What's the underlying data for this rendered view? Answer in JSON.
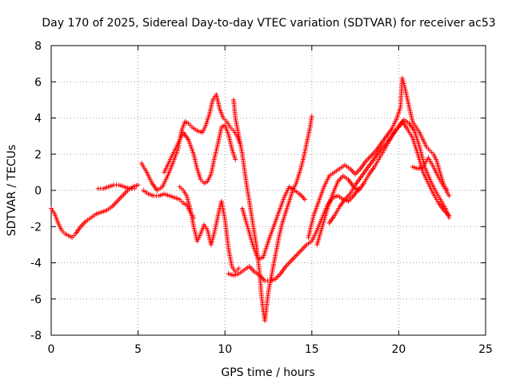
{
  "chart_data": {
    "type": "scatter",
    "title": "Day 170 of 2025, Sidereal Day-to-day VTEC variation (SDTVAR) for receiver ac53",
    "xlabel": "GPS time / hours",
    "ylabel": "SDTVAR / TECUs",
    "xlim": [
      0,
      25
    ],
    "ylim": [
      -8,
      8
    ],
    "x_ticks": [
      0,
      5,
      10,
      15,
      20,
      25
    ],
    "y_ticks": [
      -8,
      -6,
      -4,
      -2,
      0,
      2,
      4,
      6,
      8
    ],
    "grid": true,
    "grid_style": "dotted",
    "marker": "+",
    "legend": "none",
    "colors": {
      "series": "#ff0000",
      "axes": "#000000",
      "grid": "#a0a0a0"
    },
    "series": [
      {
        "points": [
          [
            0.0,
            -1.0
          ],
          [
            0.2,
            -1.3
          ],
          [
            0.4,
            -1.8
          ],
          [
            0.6,
            -2.2
          ],
          [
            0.8,
            -2.4
          ],
          [
            1.0,
            -2.5
          ],
          [
            1.2,
            -2.6
          ],
          [
            1.4,
            -2.4
          ],
          [
            1.7,
            -2.0
          ],
          [
            2.0,
            -1.7
          ],
          [
            2.3,
            -1.5
          ],
          [
            2.6,
            -1.3
          ],
          [
            2.9,
            -1.2
          ],
          [
            3.2,
            -1.1
          ],
          [
            3.5,
            -0.9
          ],
          [
            3.8,
            -0.6
          ],
          [
            4.1,
            -0.3
          ],
          [
            4.4,
            0.0
          ],
          [
            4.7,
            0.2
          ],
          [
            5.0,
            0.3
          ]
        ]
      },
      {
        "points": [
          [
            2.7,
            0.1
          ],
          [
            3.0,
            0.1
          ],
          [
            3.3,
            0.2
          ],
          [
            3.6,
            0.3
          ],
          [
            3.9,
            0.3
          ],
          [
            4.2,
            0.2
          ],
          [
            4.5,
            0.1
          ],
          [
            4.8,
            0.1
          ]
        ]
      },
      {
        "points": [
          [
            5.2,
            1.5
          ],
          [
            5.5,
            1.0
          ],
          [
            5.8,
            0.4
          ],
          [
            6.1,
            0.0
          ],
          [
            6.4,
            0.2
          ],
          [
            6.7,
            0.8
          ],
          [
            7.0,
            1.5
          ],
          [
            7.3,
            2.3
          ],
          [
            7.5,
            3.3
          ],
          [
            7.7,
            3.8
          ],
          [
            7.9,
            3.7
          ],
          [
            8.1,
            3.5
          ],
          [
            8.4,
            3.3
          ],
          [
            8.7,
            3.2
          ],
          [
            8.9,
            3.6
          ],
          [
            9.1,
            4.2
          ],
          [
            9.3,
            5.0
          ],
          [
            9.5,
            5.3
          ],
          [
            9.7,
            4.5
          ],
          [
            9.9,
            4.0
          ],
          [
            10.1,
            3.8
          ],
          [
            10.3,
            3.5
          ],
          [
            10.5,
            3.3
          ],
          [
            10.7,
            3.0
          ],
          [
            10.9,
            2.5
          ]
        ]
      },
      {
        "points": [
          [
            5.3,
            0.0
          ],
          [
            5.6,
            -0.2
          ],
          [
            5.9,
            -0.3
          ],
          [
            6.2,
            -0.3
          ],
          [
            6.5,
            -0.2
          ],
          [
            6.8,
            -0.3
          ],
          [
            7.1,
            -0.4
          ],
          [
            7.4,
            -0.5
          ],
          [
            7.6,
            -0.7
          ],
          [
            7.8,
            -0.8
          ],
          [
            8.0,
            -1.2
          ],
          [
            8.2,
            -1.5
          ]
        ]
      },
      {
        "points": [
          [
            6.5,
            1.0
          ],
          [
            6.8,
            1.6
          ],
          [
            7.1,
            2.2
          ],
          [
            7.3,
            2.6
          ],
          [
            7.6,
            3.2
          ],
          [
            7.9,
            2.8
          ],
          [
            8.2,
            2.0
          ],
          [
            8.4,
            1.2
          ],
          [
            8.6,
            0.6
          ],
          [
            8.8,
            0.4
          ],
          [
            9.0,
            0.5
          ],
          [
            9.2,
            0.9
          ],
          [
            9.4,
            1.8
          ],
          [
            9.6,
            2.6
          ],
          [
            9.8,
            3.5
          ],
          [
            10.0,
            3.6
          ],
          [
            10.2,
            3.1
          ],
          [
            10.4,
            2.3
          ],
          [
            10.6,
            1.7
          ]
        ]
      },
      {
        "points": [
          [
            7.4,
            0.2
          ],
          [
            7.6,
            0.0
          ],
          [
            7.8,
            -0.3
          ],
          [
            8.0,
            -1.0
          ],
          [
            8.2,
            -2.0
          ],
          [
            8.4,
            -2.8
          ],
          [
            8.6,
            -2.4
          ],
          [
            8.8,
            -1.9
          ],
          [
            9.0,
            -2.2
          ],
          [
            9.2,
            -3.0
          ],
          [
            9.4,
            -2.3
          ],
          [
            9.6,
            -1.4
          ],
          [
            9.8,
            -0.6
          ],
          [
            10.0,
            -1.6
          ],
          [
            10.2,
            -3.2
          ],
          [
            10.4,
            -4.2
          ],
          [
            10.6,
            -4.5
          ],
          [
            10.8,
            -4.3
          ]
        ]
      },
      {
        "points": [
          [
            10.5,
            5.0
          ],
          [
            10.6,
            4.0
          ],
          [
            10.8,
            3.0
          ],
          [
            11.0,
            2.0
          ],
          [
            11.2,
            0.6
          ],
          [
            11.4,
            -0.6
          ],
          [
            11.6,
            -1.8
          ],
          [
            11.8,
            -3.0
          ],
          [
            12.0,
            -4.6
          ],
          [
            12.1,
            -5.8
          ],
          [
            12.2,
            -6.6
          ],
          [
            12.3,
            -7.2
          ],
          [
            12.5,
            -5.6
          ],
          [
            12.7,
            -4.6
          ],
          [
            12.9,
            -3.6
          ],
          [
            13.1,
            -2.6
          ],
          [
            13.3,
            -1.8
          ],
          [
            13.5,
            -1.2
          ],
          [
            13.7,
            -0.6
          ],
          [
            13.9,
            0.0
          ],
          [
            14.1,
            0.4
          ],
          [
            14.3,
            1.0
          ],
          [
            14.5,
            1.7
          ],
          [
            14.7,
            2.6
          ],
          [
            14.9,
            3.5
          ],
          [
            15.0,
            4.1
          ]
        ]
      },
      {
        "points": [
          [
            10.2,
            -4.6
          ],
          [
            10.5,
            -4.7
          ],
          [
            10.8,
            -4.6
          ],
          [
            11.1,
            -4.4
          ],
          [
            11.4,
            -4.2
          ],
          [
            11.7,
            -4.5
          ],
          [
            12.0,
            -4.7
          ],
          [
            12.3,
            -5.0
          ],
          [
            12.6,
            -5.0
          ],
          [
            12.9,
            -4.9
          ],
          [
            13.2,
            -4.6
          ],
          [
            13.5,
            -4.2
          ],
          [
            13.8,
            -3.9
          ],
          [
            14.1,
            -3.6
          ],
          [
            14.4,
            -3.3
          ],
          [
            14.7,
            -3.0
          ],
          [
            15.0,
            -2.8
          ],
          [
            15.3,
            -2.2
          ],
          [
            15.6,
            -1.5
          ],
          [
            15.9,
            -0.8
          ],
          [
            16.2,
            -0.4
          ],
          [
            16.5,
            -0.3
          ],
          [
            16.8,
            -0.5
          ],
          [
            17.1,
            -0.6
          ],
          [
            17.4,
            -0.3
          ],
          [
            17.7,
            0.1
          ]
        ]
      },
      {
        "points": [
          [
            11.0,
            -1.0
          ],
          [
            11.3,
            -2.0
          ],
          [
            11.6,
            -3.0
          ],
          [
            11.9,
            -3.8
          ],
          [
            12.2,
            -3.7
          ],
          [
            12.5,
            -2.8
          ],
          [
            12.8,
            -2.0
          ],
          [
            13.1,
            -1.2
          ],
          [
            13.4,
            -0.4
          ],
          [
            13.7,
            0.2
          ],
          [
            14.0,
            0.0
          ],
          [
            14.3,
            -0.2
          ],
          [
            14.6,
            -0.5
          ]
        ]
      },
      {
        "points": [
          [
            14.8,
            -2.6
          ],
          [
            15.1,
            -1.4
          ],
          [
            15.4,
            -0.6
          ],
          [
            15.7,
            0.2
          ],
          [
            16.0,
            0.8
          ],
          [
            16.3,
            1.0
          ],
          [
            16.6,
            1.2
          ],
          [
            16.9,
            1.4
          ],
          [
            17.2,
            1.2
          ],
          [
            17.5,
            0.9
          ],
          [
            17.8,
            1.2
          ],
          [
            18.1,
            1.6
          ],
          [
            18.4,
            1.9
          ],
          [
            18.7,
            2.2
          ],
          [
            19.0,
            2.6
          ],
          [
            19.3,
            3.0
          ],
          [
            19.6,
            3.4
          ],
          [
            19.9,
            4.0
          ],
          [
            20.1,
            4.6
          ],
          [
            20.2,
            6.2
          ],
          [
            20.4,
            5.5
          ],
          [
            20.6,
            4.6
          ],
          [
            20.8,
            3.8
          ],
          [
            21.0,
            3.5
          ],
          [
            21.2,
            3.2
          ],
          [
            21.4,
            2.8
          ],
          [
            21.6,
            2.4
          ],
          [
            21.8,
            2.2
          ],
          [
            22.0,
            2.0
          ],
          [
            22.2,
            1.6
          ],
          [
            22.4,
            0.9
          ],
          [
            22.6,
            0.3
          ],
          [
            22.8,
            0.0
          ]
        ]
      },
      {
        "points": [
          [
            15.3,
            -3.0
          ],
          [
            15.6,
            -2.0
          ],
          [
            15.9,
            -1.0
          ],
          [
            16.2,
            -0.2
          ],
          [
            16.5,
            0.5
          ],
          [
            16.8,
            0.8
          ],
          [
            17.1,
            0.6
          ],
          [
            17.4,
            0.2
          ],
          [
            17.7,
            0.0
          ],
          [
            18.0,
            0.4
          ],
          [
            18.3,
            0.9
          ],
          [
            18.6,
            1.3
          ],
          [
            18.9,
            1.8
          ],
          [
            19.2,
            2.3
          ],
          [
            19.5,
            2.8
          ],
          [
            19.8,
            3.3
          ],
          [
            20.0,
            3.5
          ],
          [
            20.3,
            3.9
          ],
          [
            20.6,
            3.7
          ],
          [
            20.9,
            3.3
          ],
          [
            21.2,
            2.4
          ],
          [
            21.5,
            1.3
          ],
          [
            21.8,
            0.6
          ],
          [
            22.1,
            0.0
          ],
          [
            22.4,
            -0.5
          ],
          [
            22.7,
            -1.0
          ],
          [
            22.9,
            -1.5
          ]
        ]
      },
      {
        "points": [
          [
            16.0,
            -1.8
          ],
          [
            16.3,
            -1.4
          ],
          [
            16.6,
            -0.9
          ],
          [
            16.9,
            -0.5
          ],
          [
            17.2,
            -0.2
          ],
          [
            17.5,
            0.3
          ],
          [
            17.8,
            0.7
          ],
          [
            18.1,
            1.1
          ],
          [
            18.4,
            1.5
          ],
          [
            18.7,
            1.9
          ],
          [
            19.0,
            2.3
          ],
          [
            19.3,
            2.6
          ],
          [
            19.6,
            3.0
          ],
          [
            19.9,
            3.4
          ],
          [
            20.2,
            3.8
          ],
          [
            20.5,
            3.4
          ],
          [
            20.8,
            2.9
          ],
          [
            21.1,
            2.0
          ],
          [
            21.4,
            1.0
          ],
          [
            21.7,
            0.4
          ],
          [
            22.0,
            -0.2
          ],
          [
            22.3,
            -0.7
          ],
          [
            22.6,
            -1.1
          ],
          [
            22.9,
            -1.4
          ]
        ]
      },
      {
        "points": [
          [
            20.8,
            1.3
          ],
          [
            21.1,
            1.2
          ],
          [
            21.4,
            1.3
          ],
          [
            21.7,
            1.8
          ],
          [
            22.0,
            1.3
          ],
          [
            22.3,
            0.7
          ],
          [
            22.6,
            0.2
          ],
          [
            22.9,
            -0.3
          ]
        ]
      }
    ]
  }
}
